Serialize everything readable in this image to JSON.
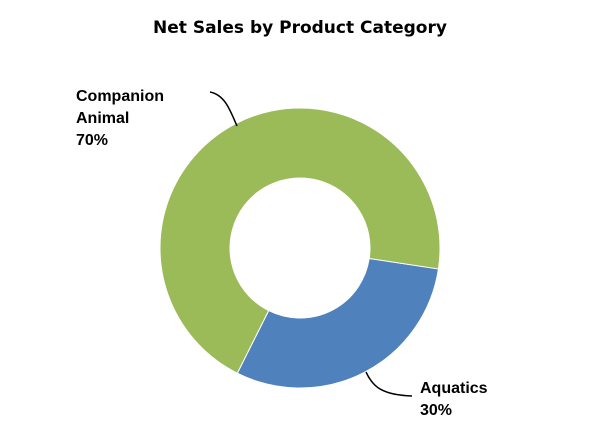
{
  "chart_data": {
    "type": "donut",
    "title": "Net Sales by Product Category",
    "categories": [
      "Companion Animal",
      "Aquatics"
    ],
    "values": [
      70,
      30
    ],
    "value_labels": [
      "70%",
      "30%"
    ],
    "colors": [
      "#9bbb59",
      "#4f81bd"
    ]
  }
}
